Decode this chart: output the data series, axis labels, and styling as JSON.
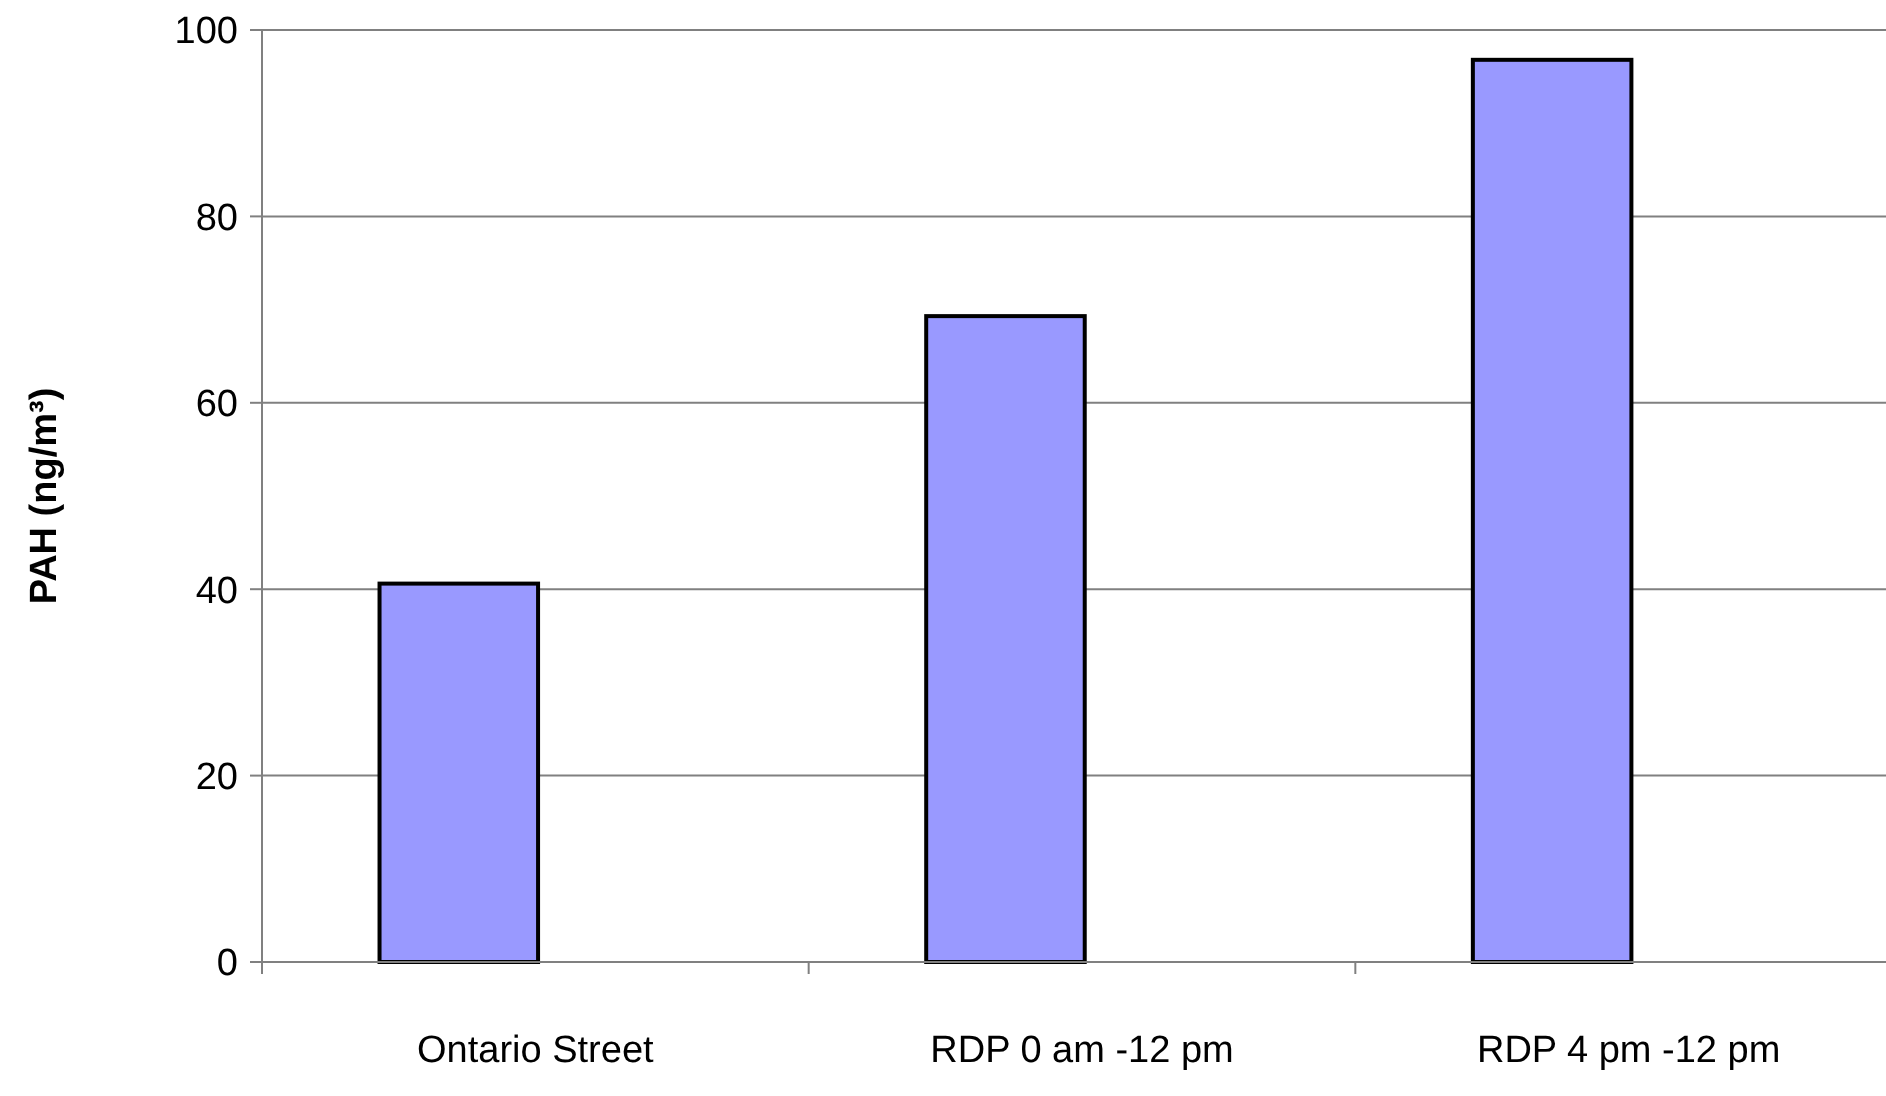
{
  "chart_data": {
    "type": "bar",
    "ylabel": "PAH (ng/m³)",
    "categories": [
      "Ontario Street",
      "RDP 0 am -12 pm",
      "RDP 4 pm -12 pm"
    ],
    "values": [
      40.6,
      69.3,
      96.8
    ],
    "color": "#9999ff",
    "ylim": [
      0,
      100
    ],
    "yticks": [
      0,
      20,
      40,
      60,
      80,
      100
    ],
    "grid": "y"
  }
}
